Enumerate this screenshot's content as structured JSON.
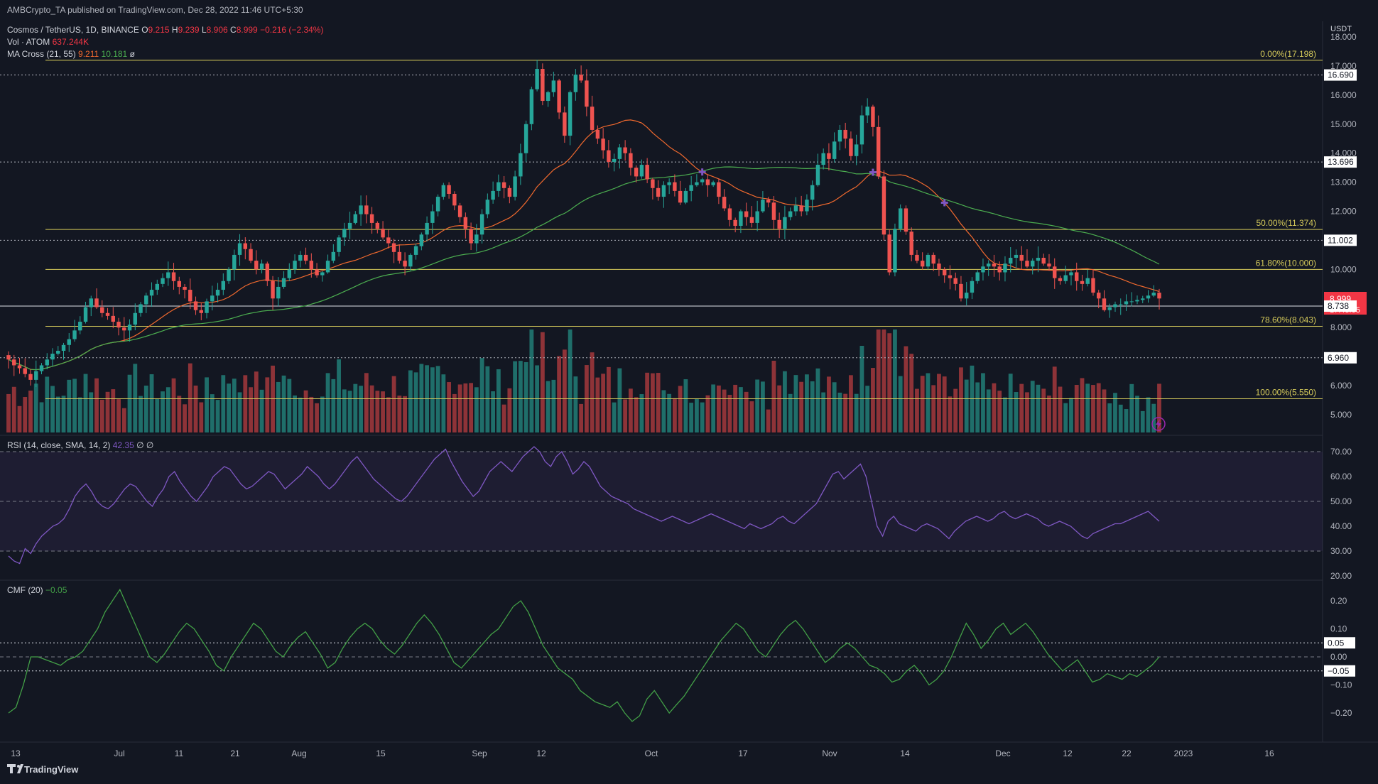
{
  "header": {
    "published": "AMBCrypto_TA published on TradingView.com, Dec 28, 2022 11:46 UTC+5:30",
    "symbol": "Cosmos / TetherUS, 1D, BINANCE",
    "o_label": "O",
    "o": "9.215",
    "h_label": "H",
    "h": "9.239",
    "l_label": "L",
    "l": "8.906",
    "c_label": "C",
    "c": "8.999",
    "change": "−0.216 (−2.34%)",
    "vol_label": "Vol · ATOM",
    "vol": "637.244K",
    "ma_label": "MA Cross (21, 55)",
    "ma21": "9.211",
    "ma55": "10.181",
    "ma_hidden_icon": "eye-off-icon"
  },
  "colors": {
    "background": "#131722",
    "up": "#26a69a",
    "down": "#ef5350",
    "vol_up": "#1f6e6a",
    "vol_down": "#8e3338",
    "ma21": "#f0692e",
    "ma55": "#4caf50",
    "fib": "#d4c95a",
    "hline": "#b2b5be",
    "rsi": "#7e57c2",
    "cmf": "#43a047",
    "price_tag": "#f23645"
  },
  "price_axis": {
    "unit": "USDT",
    "ticks": [
      "18.000",
      "17.000",
      "16.000",
      "15.000",
      "14.000",
      "13.000",
      "12.000",
      "11.000",
      "10.000",
      "9.000",
      "8.000",
      "6.000",
      "5.000"
    ]
  },
  "price_tags": {
    "current_price": "8.999",
    "countdown": "17:43:05",
    "levels": [
      "16.690",
      "13.696",
      "11.002",
      "8.738",
      "6.960"
    ]
  },
  "fib_levels": [
    {
      "label": "0.00%(17.198)",
      "value": 17.198
    },
    {
      "label": "50.00%(11.374)",
      "value": 11.374
    },
    {
      "label": "61.80%(10.000)",
      "value": 10.0
    },
    {
      "label": "78.60%(8.043)",
      "value": 8.043
    },
    {
      "label": "100.00%(5.550)",
      "value": 5.55
    }
  ],
  "horizontal_levels": [
    16.69,
    13.696,
    11.002,
    8.738,
    6.96
  ],
  "time_axis": {
    "labels": [
      "13",
      "Jul",
      "11",
      "21",
      "Aug",
      "15",
      "Sep",
      "12",
      "Oct",
      "17",
      "Nov",
      "14",
      "Dec",
      "12",
      "22",
      "2023",
      "16"
    ]
  },
  "rsi": {
    "label": "RSI (14, close, SMA, 14, 2)",
    "value": "42.35",
    "extra": "∅ ∅",
    "ticks": [
      "70.00",
      "60.00",
      "50.00",
      "40.00",
      "30.00",
      "20.00"
    ]
  },
  "cmf": {
    "label": "CMF (20)",
    "value": "−0.05",
    "ticks": [
      "0.20",
      "0.10",
      "0.00",
      "−0.10",
      "−0.20"
    ],
    "tags": [
      "0.05",
      "−0.05"
    ]
  },
  "footer": {
    "brand": "TradingView",
    "logo_icon": "tradingview-logo-icon"
  },
  "chart_data": {
    "type": "candlestick",
    "title": "Cosmos / TetherUS, 1D, BINANCE",
    "ylabel": "USDT",
    "ylim": [
      4.5,
      18.5
    ],
    "ma_cross": {
      "fast_period": 21,
      "slow_period": 55,
      "ma21_current": 9.211,
      "ma55_current": 10.181
    },
    "candles_close": [
      6.9,
      6.7,
      6.6,
      6.4,
      6.2,
      6.5,
      6.7,
      6.9,
      7.1,
      7.2,
      7.4,
      7.6,
      7.9,
      8.2,
      8.7,
      9.0,
      8.7,
      8.5,
      8.4,
      8.2,
      8.0,
      7.9,
      8.1,
      8.5,
      8.8,
      9.1,
      9.3,
      9.5,
      9.7,
      9.9,
      9.6,
      9.4,
      9.3,
      8.9,
      8.6,
      8.5,
      8.9,
      9.1,
      9.3,
      9.6,
      10.0,
      10.5,
      10.9,
      10.7,
      10.3,
      10.0,
      10.2,
      9.6,
      9.0,
      9.4,
      9.7,
      10.0,
      10.3,
      10.5,
      10.3,
      10.0,
      9.8,
      9.9,
      10.3,
      10.6,
      11.1,
      11.4,
      11.6,
      11.9,
      12.2,
      11.9,
      11.6,
      11.4,
      11.1,
      10.9,
      10.6,
      10.3,
      10.1,
      10.5,
      10.8,
      11.2,
      11.6,
      12.0,
      12.5,
      12.9,
      12.6,
      12.2,
      11.8,
      11.4,
      10.9,
      11.2,
      11.9,
      12.4,
      12.7,
      13.0,
      12.8,
      12.5,
      13.2,
      14.0,
      15.0,
      16.2,
      16.9,
      15.8,
      16.1,
      16.5,
      15.4,
      14.6,
      16.1,
      16.7,
      16.5,
      15.6,
      14.8,
      14.5,
      14.1,
      13.7,
      13.8,
      14.2,
      14.0,
      13.5,
      13.2,
      13.6,
      13.1,
      12.8,
      12.5,
      12.9,
      13.0,
      12.7,
      12.3,
      12.7,
      12.9,
      13.0,
      13.1,
      12.9,
      13.0,
      12.5,
      12.1,
      11.7,
      11.5,
      12.0,
      11.8,
      11.6,
      12.0,
      12.4,
      12.3,
      11.7,
      11.4,
      11.8,
      12.0,
      12.2,
      12.0,
      12.4,
      12.9,
      13.6,
      14.0,
      13.8,
      14.4,
      14.8,
      14.5,
      13.9,
      14.3,
      15.3,
      15.6,
      14.9,
      13.2,
      11.2,
      9.9,
      11.4,
      12.1,
      11.3,
      10.5,
      10.3,
      10.1,
      10.5,
      10.2,
      10.0,
      9.8,
      9.7,
      9.5,
      9.0,
      9.2,
      9.6,
      9.9,
      10.1,
      10.2,
      10.1,
      9.9,
      10.2,
      10.4,
      10.5,
      10.3,
      10.1,
      10.3,
      10.4,
      10.2,
      10.1,
      9.7,
      9.6,
      9.8,
      9.9,
      9.6,
      9.5,
      9.7,
      9.2,
      9.0,
      8.6,
      8.7,
      8.8,
      8.8,
      8.9,
      8.9,
      8.95,
      9.0,
      9.1,
      9.2,
      9.0
    ],
    "rsi_values": [
      28,
      26,
      25,
      31,
      29,
      33,
      36,
      38,
      40,
      41,
      43,
      47,
      52,
      55,
      57,
      54,
      50,
      48,
      47,
      49,
      52,
      55,
      57,
      56,
      53,
      50,
      48,
      52,
      55,
      60,
      62,
      58,
      55,
      52,
      50,
      53,
      56,
      60,
      62,
      64,
      63,
      60,
      57,
      55,
      56,
      58,
      60,
      62,
      61,
      58,
      55,
      57,
      59,
      61,
      64,
      62,
      60,
      57,
      55,
      57,
      60,
      63,
      66,
      68,
      65,
      62,
      59,
      57,
      55,
      53,
      51,
      50,
      52,
      55,
      58,
      61,
      64,
      67,
      69,
      71,
      66,
      62,
      58,
      55,
      52,
      54,
      58,
      62,
      64,
      66,
      64,
      62,
      65,
      68,
      70,
      72,
      70,
      66,
      64,
      68,
      70,
      66,
      61,
      63,
      66,
      64,
      60,
      56,
      54,
      52,
      51,
      50,
      49,
      47,
      46,
      45,
      44,
      43,
      42,
      43,
      44,
      43,
      42,
      41,
      42,
      43,
      44,
      45,
      44,
      43,
      42,
      41,
      40,
      39,
      41,
      40,
      39,
      40,
      41,
      43,
      44,
      42,
      41,
      43,
      45,
      47,
      49,
      53,
      57,
      61,
      62,
      59,
      61,
      63,
      65,
      60,
      50,
      40,
      36,
      42,
      44,
      41,
      40,
      39,
      38,
      40,
      41,
      40,
      39,
      37,
      35,
      38,
      40,
      42,
      43,
      44,
      43,
      42,
      43,
      45,
      46,
      44,
      43,
      44,
      45,
      44,
      43,
      41,
      40,
      41,
      42,
      41,
      40,
      38,
      36,
      35,
      37,
      38,
      39,
      40,
      41,
      41,
      42,
      43,
      44,
      45,
      46,
      44,
      42
    ],
    "cmf_values": [
      -0.2,
      -0.18,
      -0.1,
      0.0,
      0.0,
      -0.01,
      -0.02,
      -0.03,
      -0.01,
      0.0,
      0.02,
      0.06,
      0.1,
      0.16,
      0.2,
      0.24,
      0.18,
      0.12,
      0.06,
      0.0,
      -0.02,
      0.01,
      0.05,
      0.09,
      0.12,
      0.1,
      0.06,
      0.02,
      -0.03,
      -0.05,
      0.0,
      0.04,
      0.08,
      0.12,
      0.1,
      0.06,
      0.02,
      0.0,
      0.04,
      0.07,
      0.09,
      0.05,
      0.01,
      -0.04,
      -0.02,
      0.03,
      0.07,
      0.1,
      0.12,
      0.1,
      0.06,
      0.03,
      0.01,
      0.04,
      0.08,
      0.12,
      0.15,
      0.12,
      0.08,
      0.03,
      -0.02,
      -0.04,
      -0.01,
      0.02,
      0.05,
      0.08,
      0.1,
      0.14,
      0.18,
      0.2,
      0.16,
      0.1,
      0.04,
      0.0,
      -0.04,
      -0.06,
      -0.08,
      -0.12,
      -0.14,
      -0.16,
      -0.17,
      -0.18,
      -0.16,
      -0.2,
      -0.23,
      -0.21,
      -0.15,
      -0.12,
      -0.16,
      -0.2,
      -0.17,
      -0.14,
      -0.1,
      -0.06,
      -0.02,
      0.02,
      0.06,
      0.09,
      0.12,
      0.1,
      0.06,
      0.02,
      0.0,
      0.04,
      0.08,
      0.11,
      0.13,
      0.1,
      0.06,
      0.02,
      -0.02,
      0.0,
      0.03,
      0.05,
      0.03,
      0.0,
      -0.03,
      -0.04,
      -0.06,
      -0.09,
      -0.08,
      -0.05,
      -0.03,
      -0.06,
      -0.1,
      -0.08,
      -0.05,
      0.0,
      0.06,
      0.12,
      0.08,
      0.03,
      0.06,
      0.1,
      0.12,
      0.08,
      0.1,
      0.12,
      0.09,
      0.05,
      0.01,
      -0.02,
      -0.05,
      -0.03,
      -0.01,
      -0.05,
      -0.09,
      -0.08,
      -0.06,
      -0.07,
      -0.08,
      -0.06,
      -0.07,
      -0.05,
      -0.03,
      0.0
    ]
  }
}
